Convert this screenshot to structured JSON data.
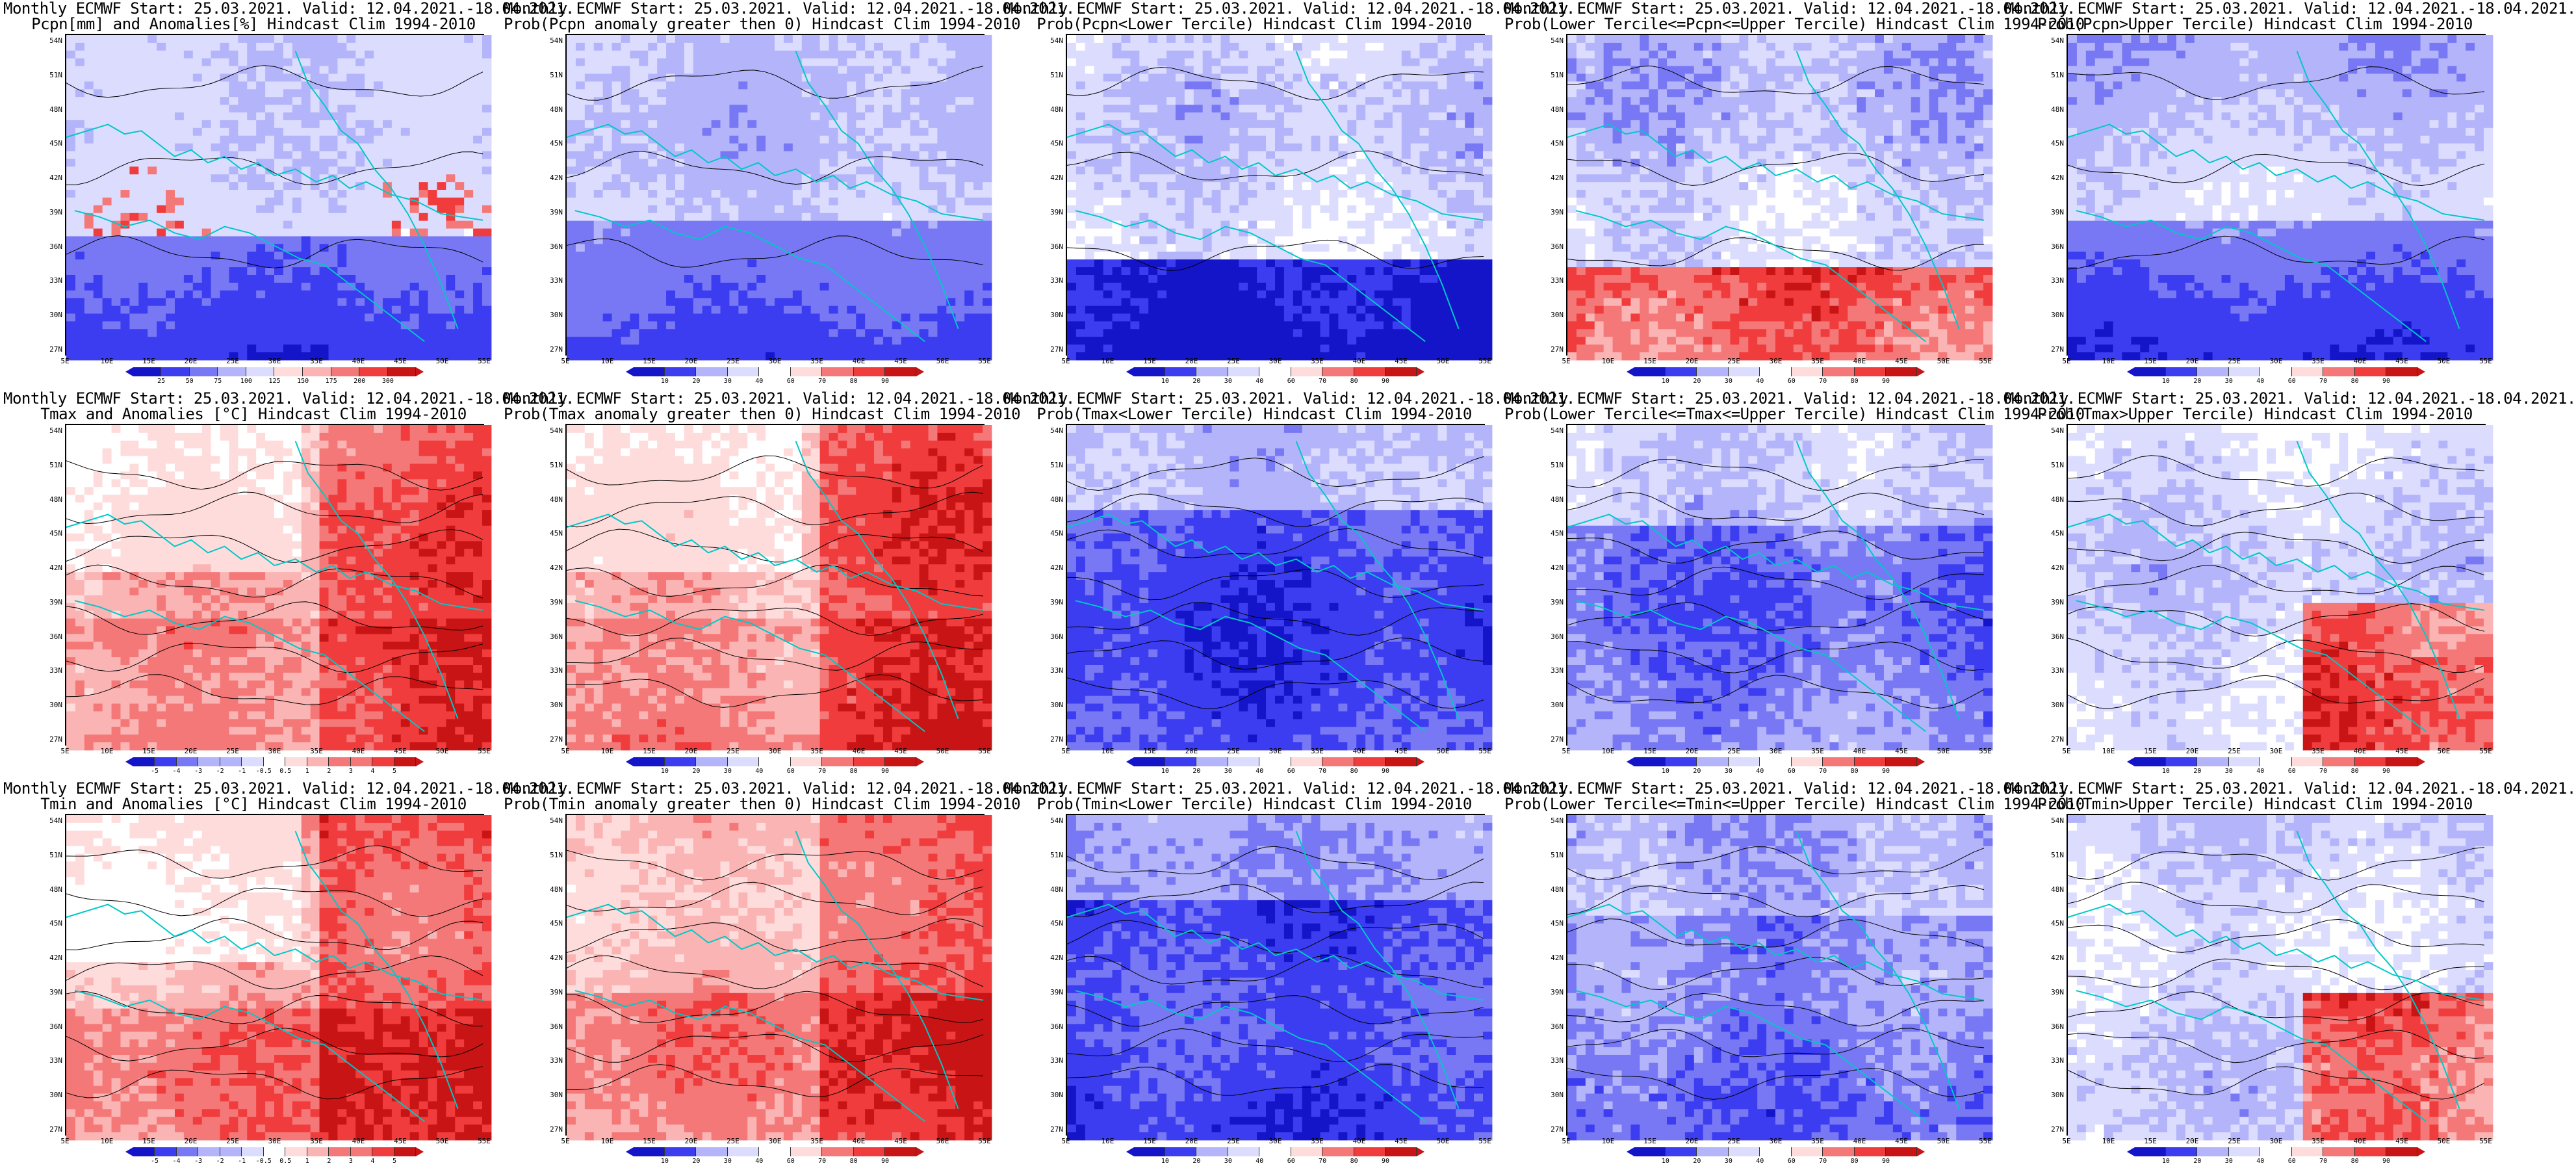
{
  "colors": {
    "deep_blue": "#1414c8",
    "blue": "#3c3cf0",
    "mid_blue": "#7878f5",
    "light_blue": "#b4b4fa",
    "pale_blue": "#dcdcff",
    "white": "#ffffff",
    "pale_red": "#ffdcdc",
    "light_red": "#fab4b4",
    "mid_red": "#f57878",
    "red": "#f03c3c",
    "deep_red": "#c81414",
    "coastline": "#00c8c8",
    "contour": "#000000"
  },
  "common": {
    "lat_labels": [
      "54N",
      "51N",
      "48N",
      "45N",
      "42N",
      "39N",
      "36N",
      "33N",
      "30N",
      "27N"
    ],
    "lon_labels": [
      "5E",
      "10E",
      "15E",
      "20E",
      "25E",
      "30E",
      "35E",
      "40E",
      "45E",
      "50E",
      "55E"
    ]
  },
  "prob_cbar_labels": [
    "10",
    "20",
    "30",
    "40",
    "60",
    "70",
    "80",
    "90"
  ],
  "panels": [
    {
      "title1": "Monthly ECMWF Start: 25.03.2021. Valid: 12.04.2021.-18.04.2021.",
      "title2": "Pcpn[mm] and Anomalies[%] Hindcast Clim 1994-2010",
      "scheme": "precip",
      "cbar": [
        "25",
        "50",
        "75",
        "100",
        "125",
        "150",
        "175",
        "200",
        "300"
      ]
    },
    {
      "title1": "Monthly ECMWF Start: 25.03.2021. Valid: 12.04.2021.-18.04.2021.",
      "title2": "Prob(Pcpn anomaly greater then 0) Hindcast Clim 1994-2010",
      "scheme": "prob_pos",
      "cbar": [
        "10",
        "20",
        "30",
        "40",
        "60",
        "70",
        "80",
        "90"
      ]
    },
    {
      "title1": "Monthly ECMWF Start: 25.03.2021. Valid: 12.04.2021.-18.04.2021.",
      "title2": "Prob(Pcpn<Lower Tercile) Hindcast Clim 1994-2010",
      "scheme": "dry",
      "cbar": [
        "10",
        "20",
        "30",
        "40",
        "60",
        "70",
        "80",
        "90"
      ]
    },
    {
      "title1": "Monthly ECMWF Start: 25.03.2021. Valid: 12.04.2021.-18.04.2021.",
      "title2": "Prob(Lower Tercile<=Pcpn<=Upper Tercile) Hindcast Clim 1994-2010",
      "scheme": "mid_precip",
      "cbar": [
        "10",
        "20",
        "30",
        "40",
        "60",
        "70",
        "80",
        "90"
      ]
    },
    {
      "title1": "Monthly ECMWF Start: 25.03.2021. Valid: 12.04.2021.-18.04.2021.",
      "title2": "Prob(Pcpn>Upper Tercile) Hindcast Clim 1994-2010",
      "scheme": "prob_pos",
      "cbar": [
        "10",
        "20",
        "30",
        "40",
        "60",
        "70",
        "80",
        "90"
      ]
    },
    {
      "title1": "Monthly ECMWF Start: 25.03.2021. Valid: 12.04.2021.-18.04.2021.",
      "title2": "Tmax and Anomalies [°C] Hindcast Clim 1994-2010",
      "scheme": "warm_anom",
      "cbar": [
        "-5",
        "-4",
        "-3",
        "-2",
        "-1",
        "-0.5",
        "0.5",
        "1",
        "2",
        "3",
        "4",
        "5"
      ]
    },
    {
      "title1": "Monthly ECMWF Start: 25.03.2021. Valid: 12.04.2021.-18.04.2021.",
      "title2": "Prob(Tmax anomaly greater then 0) Hindcast Clim 1994-2010",
      "scheme": "warm_anom",
      "cbar": [
        "10",
        "20",
        "30",
        "40",
        "60",
        "70",
        "80",
        "90"
      ]
    },
    {
      "title1": "Monthly ECMWF Start: 25.03.2021. Valid: 12.04.2021.-18.04.2021.",
      "title2": "Prob(Tmax<Lower Tercile) Hindcast Clim 1994-2010",
      "scheme": "cold",
      "cbar": [
        "10",
        "20",
        "30",
        "40",
        "60",
        "70",
        "80",
        "90"
      ]
    },
    {
      "title1": "Monthly ECMWF Start: 25.03.2021. Valid: 12.04.2021.-18.04.2021.",
      "title2": "Prob(Lower Tercile<=Tmax<=Upper Tercile) Hindcast Clim 1994-2010",
      "scheme": "mid_cold",
      "cbar": [
        "10",
        "20",
        "30",
        "40",
        "60",
        "70",
        "80",
        "90"
      ]
    },
    {
      "title1": "Monthly ECMWF Start: 25.03.2021. Valid: 12.04.2021.-18.04.2021.",
      "title2": "Prob(Tmax>Upper Tercile) Hindcast Clim 1994-2010",
      "scheme": "upper_warm",
      "cbar": [
        "10",
        "20",
        "30",
        "40",
        "60",
        "70",
        "80",
        "90"
      ]
    },
    {
      "title1": "Monthly ECMWF Start: 25.03.2021. Valid: 12.04.2021.-18.04.2021.",
      "title2": "Tmin and Anomalies [°C] Hindcast Clim 1994-2010",
      "scheme": "warm_anom",
      "cbar": [
        "-5",
        "-4",
        "-3",
        "-2",
        "-1",
        "-0.5",
        "0.5",
        "1",
        "2",
        "3",
        "4",
        "5"
      ]
    },
    {
      "title1": "Monthly ECMWF Start: 25.03.2021. Valid: 12.04.2021.-18.04.2021.",
      "title2": "Prob(Tmin anomaly greater then 0) Hindcast Clim 1994-2010",
      "scheme": "warm_strong",
      "cbar": [
        "10",
        "20",
        "30",
        "40",
        "60",
        "70",
        "80",
        "90"
      ]
    },
    {
      "title1": "Monthly ECMWF Start: 25.03.2021. Valid: 12.04.2021.-18.04.2021.",
      "title2": "Prob(Tmin<Lower Tercile) Hindcast Clim 1994-2010",
      "scheme": "cold",
      "cbar": [
        "10",
        "20",
        "30",
        "40",
        "60",
        "70",
        "80",
        "90"
      ]
    },
    {
      "title1": "Monthly ECMWF Start: 25.03.2021. Valid: 12.04.2021.-18.04.2021.",
      "title2": "Prob(Lower Tercile<=Tmin<=Upper Tercile) Hindcast Clim 1994-2010",
      "scheme": "mid_cold",
      "cbar": [
        "10",
        "20",
        "30",
        "40",
        "60",
        "70",
        "80",
        "90"
      ]
    },
    {
      "title1": "Monthly ECMWF Start: 25.03.2021. Valid: 12.04.2021.-18.04.2021.",
      "title2": "Prob(Tmin>Upper Tercile) Hindcast Clim 1994-2010",
      "scheme": "upper_warm",
      "cbar": [
        "10",
        "20",
        "30",
        "40",
        "60",
        "70",
        "80",
        "90"
      ]
    }
  ]
}
